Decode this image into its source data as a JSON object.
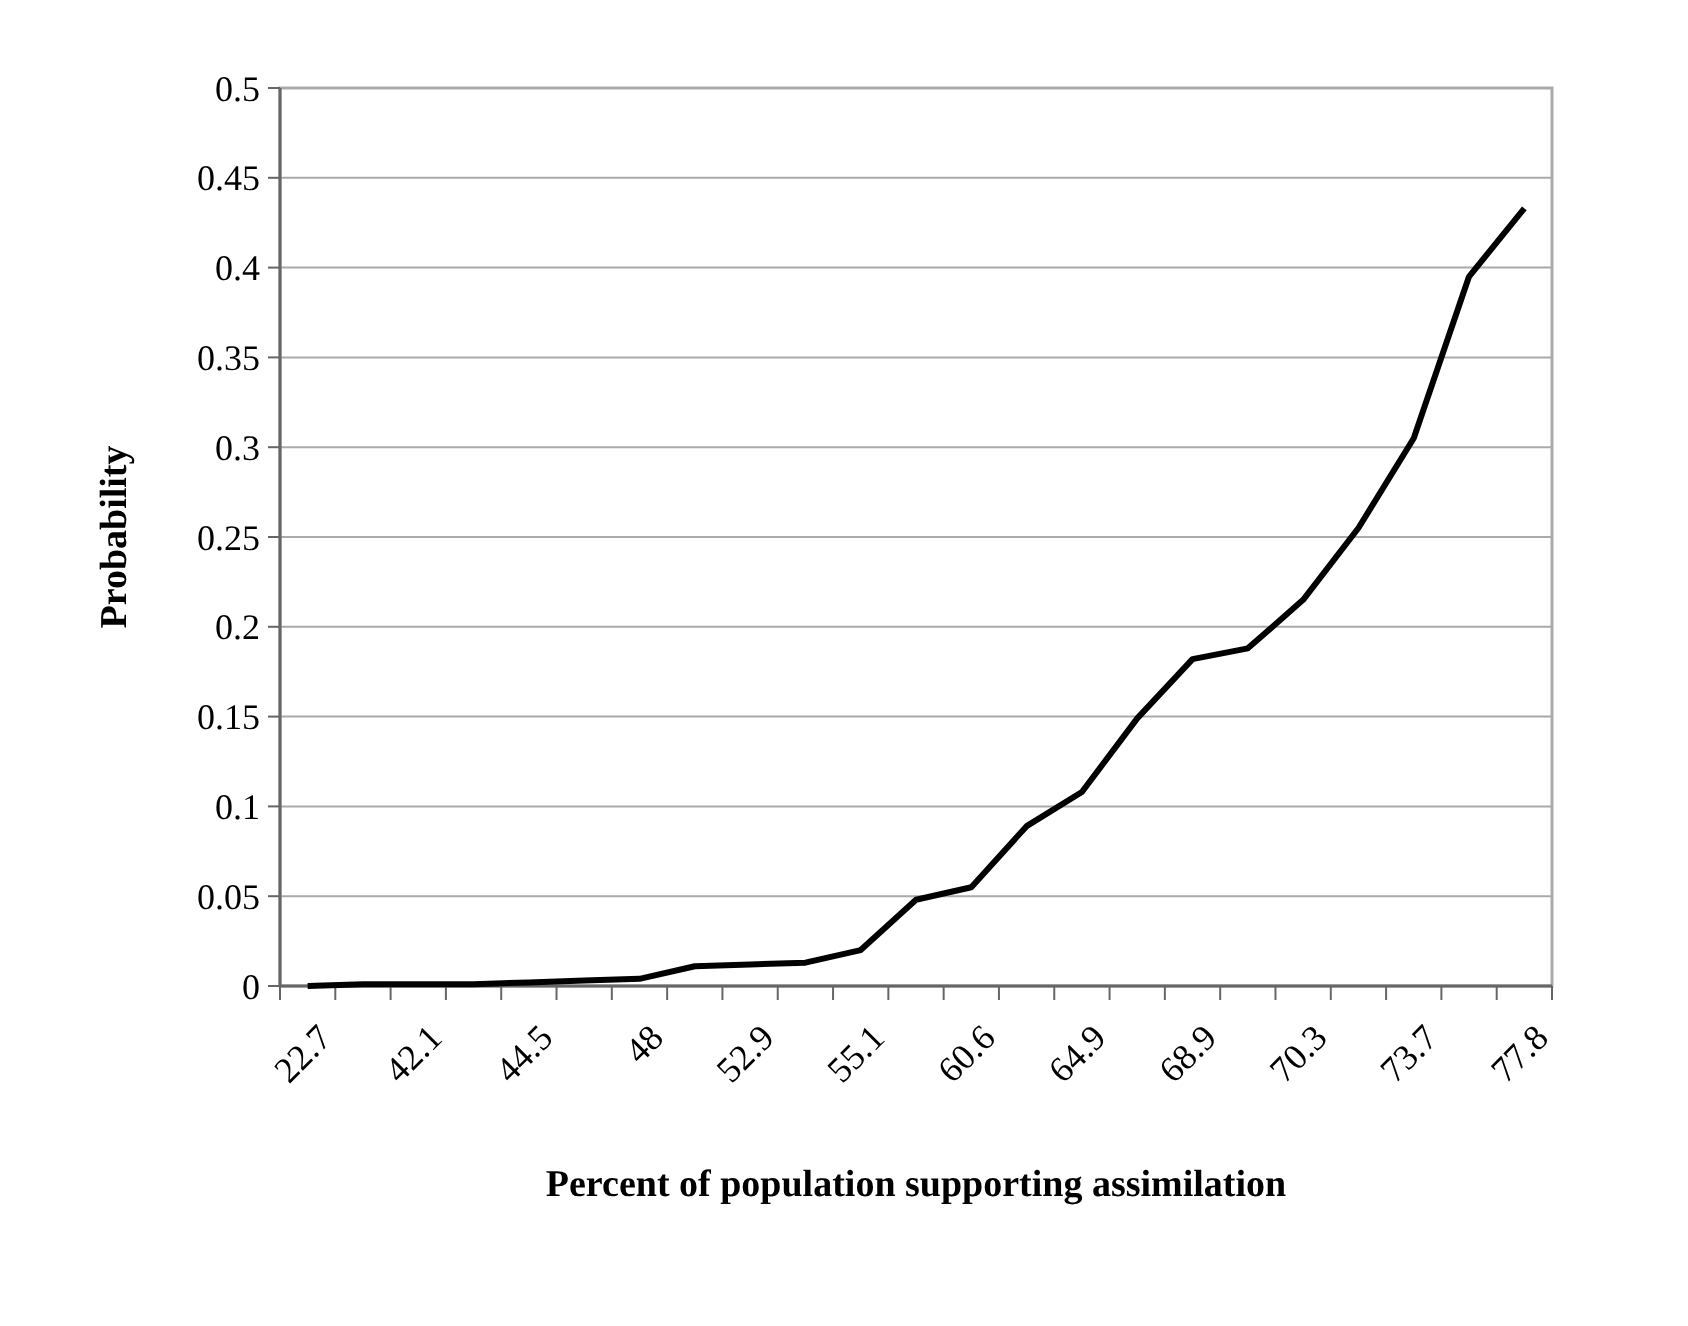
{
  "chart_data": {
    "type": "line",
    "xlabel": "Percent of population supporting assimilation",
    "ylabel": "Probability",
    "categories": [
      "22.7",
      null,
      "42.1",
      null,
      "44.5",
      null,
      "48",
      null,
      "52.9",
      null,
      "55.1",
      null,
      "60.6",
      null,
      "64.9",
      null,
      "68.9",
      null,
      "70.3",
      null,
      "73.7",
      null,
      "77.8"
    ],
    "series": [
      {
        "color": "#000000",
        "values": [
          0,
          0.001,
          0.001,
          0.001,
          0.002,
          0.003,
          0.004,
          0.011,
          0.012,
          0.013,
          0.02,
          0.048,
          0.055,
          0.089,
          0.108,
          0.149,
          0.182,
          0.188,
          0.215,
          0.255,
          0.305,
          0.395,
          0.433
        ]
      }
    ],
    "ylim": [
      0,
      0.5
    ],
    "yticks": [
      0,
      0.05,
      0.1,
      0.15,
      0.2,
      0.25,
      0.3,
      0.35,
      0.4,
      0.45,
      0.5
    ],
    "grid": "y",
    "marker": "none",
    "line_style": "solid"
  }
}
